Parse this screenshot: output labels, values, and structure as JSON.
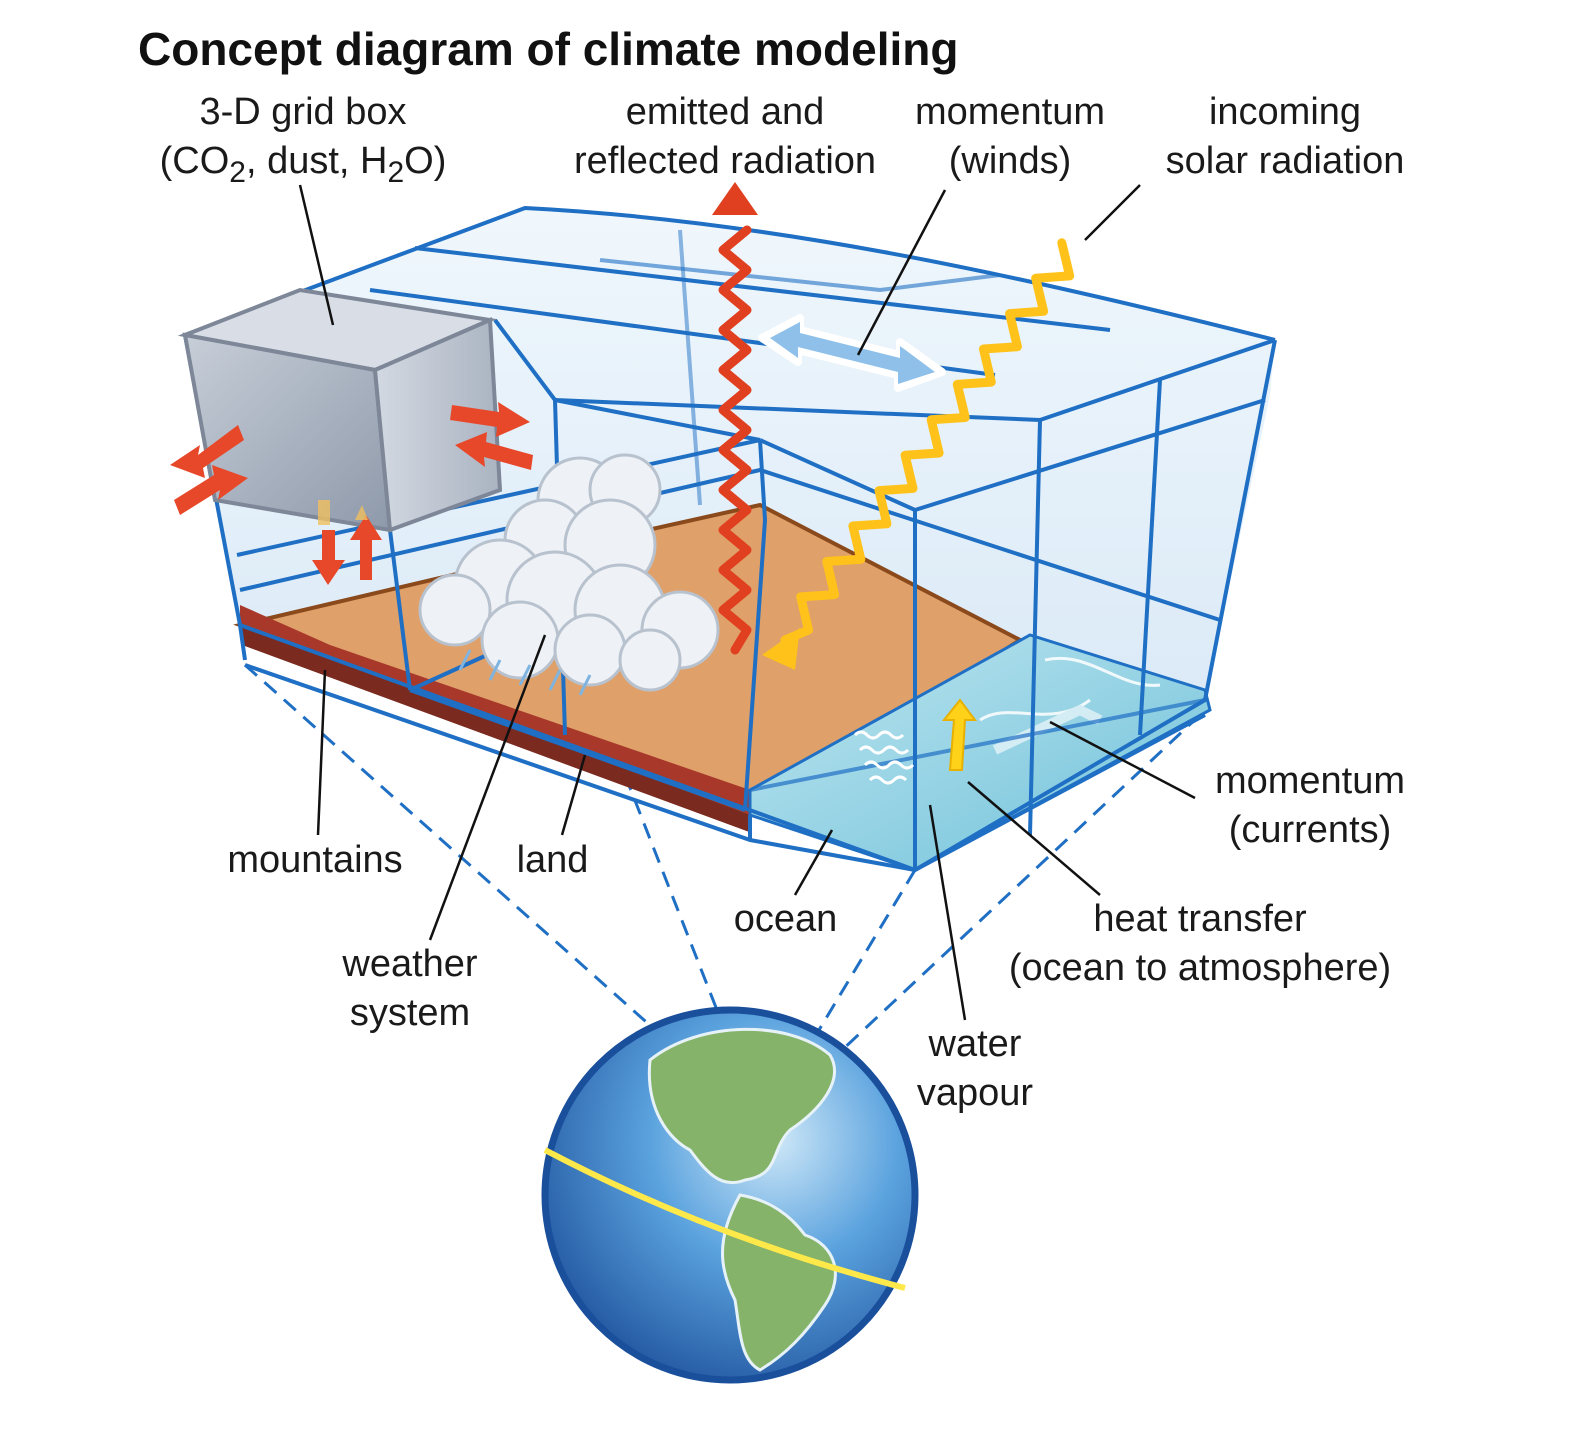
{
  "title": "Concept diagram of climate modeling",
  "labels": {
    "grid_box": {
      "line1": "3-D grid box",
      "line2_a": "(CO",
      "line2_sub1": "2",
      "line2_b": ", dust, H",
      "line2_sub2": "2",
      "line2_c": "O)"
    },
    "emitted_radiation": {
      "line1": "emitted and",
      "line2": "reflected radiation"
    },
    "momentum_winds": {
      "line1": "momentum",
      "line2": "(winds)"
    },
    "incoming_solar": {
      "line1": "incoming",
      "line2": "solar radiation"
    },
    "mountains": "mountains",
    "land": "land",
    "weather_system": {
      "line1": "weather",
      "line2": "system"
    },
    "ocean": "ocean",
    "momentum_currents": {
      "line1": "momentum",
      "line2": "(currents)"
    },
    "heat_transfer": {
      "line1": "heat transfer",
      "line2": "(ocean to atmosphere)"
    },
    "water_vapour": {
      "line1": "water",
      "line2": "vapour"
    }
  },
  "colors": {
    "grid_line": "#1f6fc4",
    "grid_fill": "#dcecf8",
    "land": "#dfa06a",
    "land_edge": "#8a4a1c",
    "mountain": "#a8382a",
    "ocean": "#8fd0e4",
    "emitted_radiation": "#e0401f",
    "solar_radiation": "#ffc21a",
    "exchange_arrows": "#e8482a",
    "grid_box": "#a9b3c2",
    "cloud": "#e9edf2",
    "earth_ocean": "#2f7fd0",
    "earth_land": "#86b36a",
    "equator": "#ffe94a"
  }
}
